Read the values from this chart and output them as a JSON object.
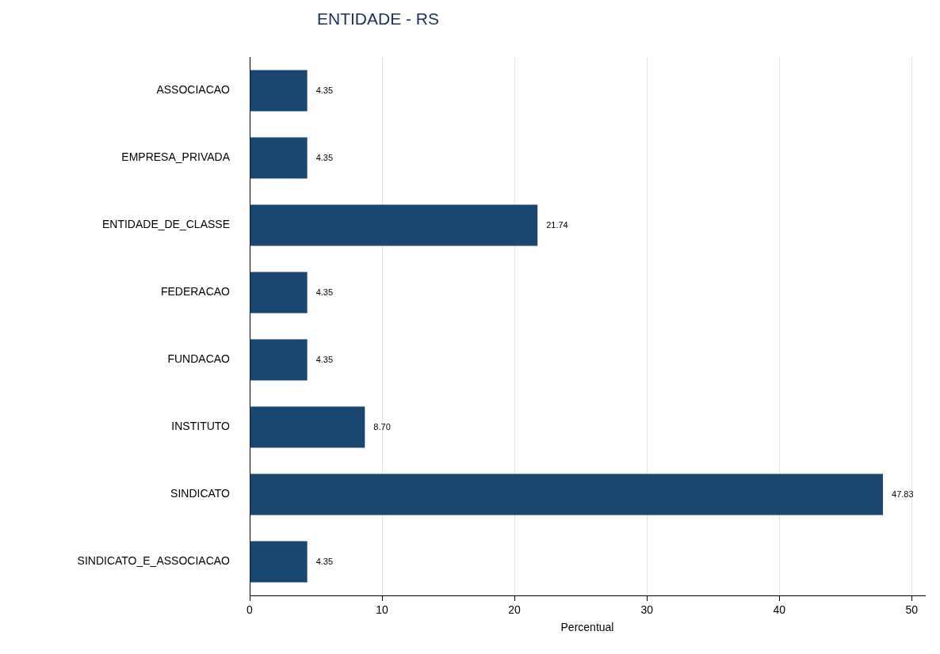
{
  "chart_data": {
    "type": "bar",
    "orientation": "horizontal",
    "title": "ENTIDADE - RS",
    "xlabel": "Percentual",
    "categories": [
      "ASSOCIACAO",
      "EMPRESA_PRIVADA",
      "ENTIDADE_DE_CLASSE",
      "FEDERACAO",
      "FUNDACAO",
      "INSTITUTO",
      "SINDICATO",
      "SINDICATO_E_ASSOCIACAO"
    ],
    "values": [
      4.35,
      4.35,
      21.74,
      4.35,
      4.35,
      8.7,
      47.83,
      4.35
    ],
    "value_labels": [
      "4.35",
      "4.35",
      "21.74",
      "4.35",
      "4.35",
      "8.70",
      "47.83",
      "4.35"
    ],
    "color": "#1a476f",
    "xlim": [
      0,
      51
    ],
    "xticks": [
      0,
      10,
      20,
      30,
      40,
      50
    ],
    "grid": "x"
  }
}
